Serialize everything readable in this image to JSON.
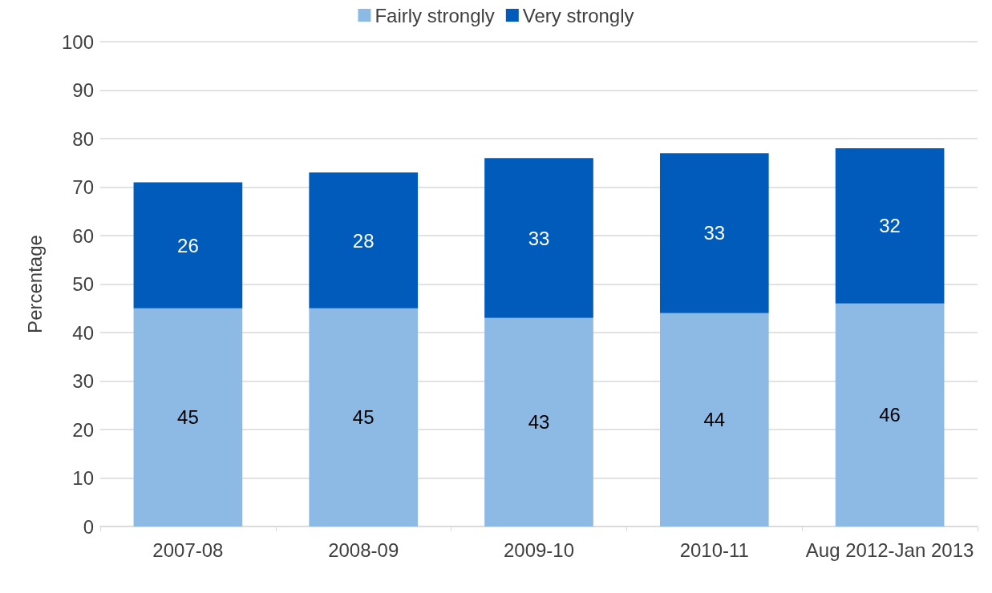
{
  "chart_data": {
    "type": "bar",
    "stacked": true,
    "ylabel": "Percentage",
    "categories": [
      "2007-08",
      "2008-09",
      "2009-10",
      "2010-11",
      "Aug 2012-Jan 2013"
    ],
    "series": [
      {
        "name": "Fairly strongly",
        "color": "#8db9e5",
        "values": [
          45,
          45,
          43,
          44,
          46
        ]
      },
      {
        "name": "Very strongly",
        "color": "#005bbb",
        "values": [
          26,
          28,
          33,
          33,
          32
        ]
      }
    ],
    "ylim": [
      0,
      100
    ],
    "yticks": [
      0,
      10,
      20,
      30,
      40,
      50,
      60,
      70,
      80,
      90,
      100
    ],
    "grid": "y",
    "legend": "top",
    "data_labels": true
  }
}
